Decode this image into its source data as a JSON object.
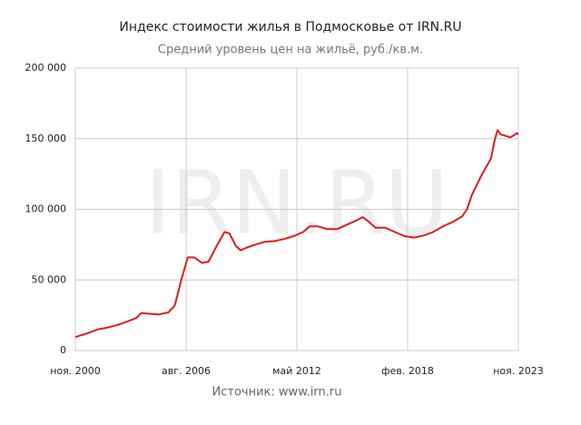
{
  "chart_data": {
    "type": "line",
    "title": "Индекс стоимости жилья в Подмосковье от IRN.RU",
    "subtitle": "Средний уровень цен на жильё, руб./кв.м.",
    "source": "Источник: www.irn.ru",
    "watermark": "IRN.RU",
    "x": [
      "2000-11",
      "2001-06",
      "2002-01",
      "2002-06",
      "2003-01",
      "2003-06",
      "2004-01",
      "2004-04",
      "2004-10",
      "2005-03",
      "2005-09",
      "2006-01",
      "2006-05",
      "2006-09",
      "2007-01",
      "2007-06",
      "2007-10",
      "2008-03",
      "2008-08",
      "2008-11",
      "2009-03",
      "2009-06",
      "2009-10",
      "2010-03",
      "2010-09",
      "2011-03",
      "2011-09",
      "2012-03",
      "2012-09",
      "2013-01",
      "2013-06",
      "2013-12",
      "2014-06",
      "2014-12",
      "2015-06",
      "2015-10",
      "2016-02",
      "2016-06",
      "2016-12",
      "2017-06",
      "2017-12",
      "2018-06",
      "2018-12",
      "2019-06",
      "2019-12",
      "2020-06",
      "2020-12",
      "2021-03",
      "2021-06",
      "2021-12",
      "2022-06",
      "2022-08",
      "2022-10",
      "2022-12",
      "2023-03",
      "2023-06",
      "2023-09",
      "2023-10",
      "2023-11"
    ],
    "series": [
      {
        "color": "#e31a1c",
        "values": [
          9500,
          12000,
          15000,
          16000,
          18000,
          20000,
          23000,
          26500,
          26000,
          25500,
          27000,
          32000,
          50000,
          66000,
          66000,
          62000,
          63000,
          74000,
          84000,
          83000,
          74000,
          71000,
          73000,
          75000,
          77000,
          77500,
          79000,
          81000,
          84000,
          88000,
          88000,
          86000,
          86000,
          89000,
          92000,
          94500,
          91000,
          87000,
          87000,
          84000,
          81000,
          80000,
          81500,
          84000,
          88000,
          91000,
          95000,
          100000,
          110000,
          124000,
          136000,
          148000,
          156000,
          153000,
          152000,
          151000,
          153000,
          154000,
          153000
        ]
      }
    ],
    "xlim": [
      "2000-11",
      "2023-11"
    ],
    "xticks": [
      {
        "value": "2000-11",
        "label": "ноя. 2000"
      },
      {
        "value": "2006-08",
        "label": "авг. 2006"
      },
      {
        "value": "2012-05",
        "label": "май 2012"
      },
      {
        "value": "2018-02",
        "label": "фев. 2018"
      },
      {
        "value": "2023-11",
        "label": "ноя. 2023"
      }
    ],
    "ylim": [
      0,
      200000
    ],
    "yticks": [
      0,
      {
        "value": 50000,
        "label": "50 000"
      },
      {
        "value": 100000,
        "label": "100 000"
      },
      {
        "value": 150000,
        "label": "150 000"
      },
      {
        "value": 200000,
        "label": "200 000"
      }
    ],
    "grid": true
  }
}
